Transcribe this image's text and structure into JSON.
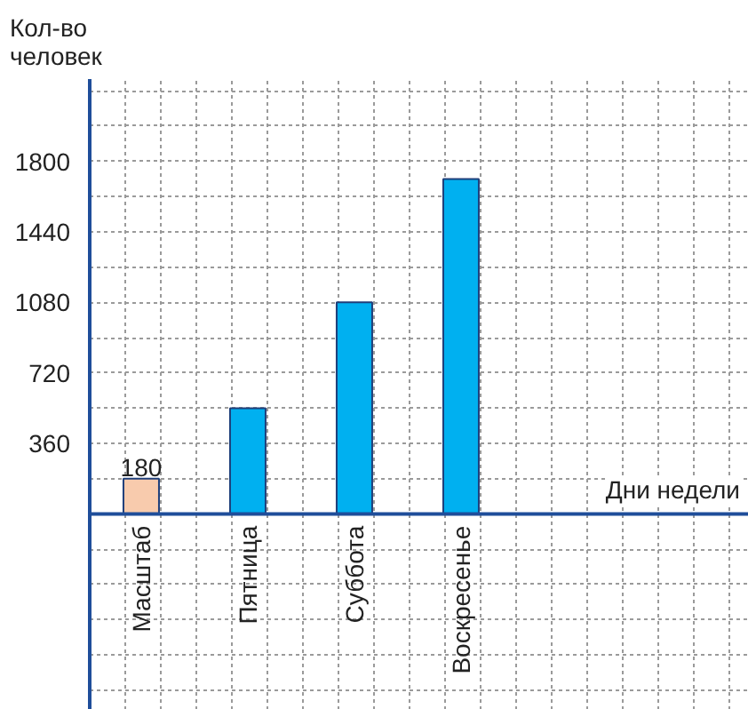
{
  "chart_data": {
    "type": "bar",
    "xlabel": "Дни недели",
    "ylabel": "Кол-во\nчеловек",
    "categories": [
      "Масштаб",
      "Пятница",
      "Суббота",
      "Воскресенье"
    ],
    "values": [
      180,
      540,
      1080,
      1710
    ],
    "colors": [
      "#f8cbad",
      "#00b0f0",
      "#00b0f0",
      "#00b0f0"
    ],
    "value_labels": [
      "180",
      null,
      null,
      null
    ],
    "ylim": [
      -1000,
      2220
    ],
    "yticks": [
      {
        "value": -900,
        "label": null
      },
      {
        "value": -720,
        "label": null
      },
      {
        "value": -540,
        "label": null
      },
      {
        "value": -360,
        "label": null
      },
      {
        "value": -180,
        "label": null
      },
      {
        "value": 0,
        "label": null
      },
      {
        "value": 180,
        "label": null
      },
      360,
      {
        "value": 540,
        "label": null
      },
      720,
      {
        "value": 900,
        "label": null
      },
      1080,
      {
        "value": 1260,
        "label": null
      },
      1440,
      {
        "value": 1620,
        "label": null
      },
      1800,
      {
        "value": 1980,
        "label": null
      },
      {
        "value": 2160,
        "label": null
      }
    ],
    "grid": true
  }
}
